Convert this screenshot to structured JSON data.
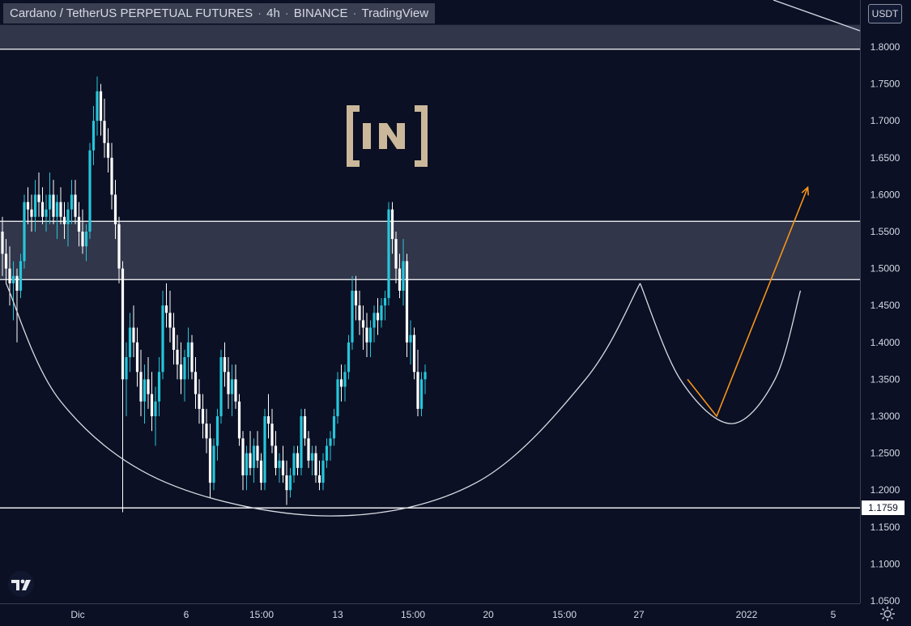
{
  "header": {
    "pair": "Cardano / TetherUS PERPETUAL FUTURES",
    "interval": "4h",
    "exchange": "BINANCE",
    "platform": "TradingView",
    "unit": "USDT"
  },
  "price_marker": {
    "value": "1.1759"
  },
  "chart_data": {
    "type": "candlestick",
    "y_axis": {
      "range": [
        1.05,
        1.83
      ],
      "ticks": [
        "1.8000",
        "1.7500",
        "1.7000",
        "1.6500",
        "1.6000",
        "1.5500",
        "1.5000",
        "1.4500",
        "1.4000",
        "1.3500",
        "1.3000",
        "1.2500",
        "1.2000",
        "1.1500",
        "1.1000",
        "1.0500"
      ]
    },
    "x_axis": {
      "ticks": [
        {
          "label": "Dic",
          "i": 20
        },
        {
          "label": "6",
          "i": 50
        },
        {
          "label": "15:00",
          "i": 70
        },
        {
          "label": "13",
          "i": 90
        },
        {
          "label": "15:00",
          "i": 110
        },
        {
          "label": "20",
          "i": 130
        },
        {
          "label": "15:00",
          "i": 150
        },
        {
          "label": "27",
          "i": 170
        },
        {
          "label": "2022",
          "i": 199
        },
        {
          "label": "5",
          "i": 222
        }
      ]
    },
    "levels": [
      1.797,
      1.564,
      1.485,
      1.1759
    ],
    "zones": [
      {
        "from": 1.797,
        "to": 1.83
      },
      {
        "from": 1.485,
        "to": 1.564
      }
    ],
    "colors": {
      "up": "#26c6da",
      "down": "#ffffff",
      "zone": "#52566a",
      "arrow": "#f7931a",
      "curve": "#d9dce3"
    },
    "candles_ohlc": [
      [
        1.55,
        1.57,
        1.49,
        1.52
      ],
      [
        1.52,
        1.54,
        1.48,
        1.5
      ],
      [
        1.5,
        1.53,
        1.45,
        1.48
      ],
      [
        1.48,
        1.51,
        1.43,
        1.49
      ],
      [
        1.49,
        1.5,
        1.4,
        1.47
      ],
      [
        1.47,
        1.52,
        1.46,
        1.51
      ],
      [
        1.51,
        1.6,
        1.5,
        1.59
      ],
      [
        1.59,
        1.61,
        1.56,
        1.58
      ],
      [
        1.58,
        1.6,
        1.55,
        1.57
      ],
      [
        1.57,
        1.62,
        1.55,
        1.6
      ],
      [
        1.6,
        1.63,
        1.57,
        1.59
      ],
      [
        1.59,
        1.61,
        1.56,
        1.57
      ],
      [
        1.57,
        1.6,
        1.55,
        1.58
      ],
      [
        1.58,
        1.63,
        1.56,
        1.6
      ],
      [
        1.6,
        1.62,
        1.56,
        1.57
      ],
      [
        1.57,
        1.6,
        1.54,
        1.59
      ],
      [
        1.59,
        1.61,
        1.56,
        1.57
      ],
      [
        1.57,
        1.59,
        1.54,
        1.56
      ],
      [
        1.56,
        1.59,
        1.53,
        1.58
      ],
      [
        1.58,
        1.62,
        1.56,
        1.6
      ],
      [
        1.6,
        1.62,
        1.56,
        1.57
      ],
      [
        1.57,
        1.59,
        1.53,
        1.55
      ],
      [
        1.55,
        1.58,
        1.52,
        1.53
      ],
      [
        1.53,
        1.56,
        1.51,
        1.55
      ],
      [
        1.55,
        1.67,
        1.54,
        1.66
      ],
      [
        1.66,
        1.72,
        1.64,
        1.7
      ],
      [
        1.7,
        1.76,
        1.68,
        1.74
      ],
      [
        1.74,
        1.75,
        1.68,
        1.7
      ],
      [
        1.7,
        1.73,
        1.65,
        1.67
      ],
      [
        1.67,
        1.69,
        1.63,
        1.65
      ],
      [
        1.65,
        1.67,
        1.58,
        1.6
      ],
      [
        1.6,
        1.62,
        1.54,
        1.56
      ],
      [
        1.56,
        1.57,
        1.48,
        1.5
      ],
      [
        1.5,
        1.51,
        1.17,
        1.35
      ],
      [
        1.35,
        1.4,
        1.3,
        1.38
      ],
      [
        1.38,
        1.44,
        1.36,
        1.42
      ],
      [
        1.42,
        1.45,
        1.38,
        1.4
      ],
      [
        1.4,
        1.42,
        1.34,
        1.36
      ],
      [
        1.36,
        1.39,
        1.3,
        1.32
      ],
      [
        1.32,
        1.37,
        1.29,
        1.35
      ],
      [
        1.35,
        1.38,
        1.31,
        1.33
      ],
      [
        1.33,
        1.36,
        1.28,
        1.3
      ],
      [
        1.3,
        1.34,
        1.26,
        1.32
      ],
      [
        1.32,
        1.38,
        1.3,
        1.36
      ],
      [
        1.36,
        1.47,
        1.35,
        1.45
      ],
      [
        1.45,
        1.48,
        1.42,
        1.44
      ],
      [
        1.44,
        1.47,
        1.4,
        1.42
      ],
      [
        1.42,
        1.44,
        1.37,
        1.39
      ],
      [
        1.39,
        1.41,
        1.35,
        1.37
      ],
      [
        1.37,
        1.4,
        1.33,
        1.35
      ],
      [
        1.35,
        1.39,
        1.32,
        1.38
      ],
      [
        1.38,
        1.42,
        1.35,
        1.4
      ],
      [
        1.4,
        1.41,
        1.35,
        1.36
      ],
      [
        1.36,
        1.38,
        1.31,
        1.33
      ],
      [
        1.33,
        1.35,
        1.29,
        1.31
      ],
      [
        1.31,
        1.33,
        1.27,
        1.29
      ],
      [
        1.29,
        1.31,
        1.25,
        1.27
      ],
      [
        1.27,
        1.29,
        1.19,
        1.21
      ],
      [
        1.21,
        1.27,
        1.2,
        1.26
      ],
      [
        1.26,
        1.31,
        1.24,
        1.3
      ],
      [
        1.3,
        1.39,
        1.29,
        1.38
      ],
      [
        1.38,
        1.4,
        1.34,
        1.36
      ],
      [
        1.36,
        1.38,
        1.31,
        1.33
      ],
      [
        1.33,
        1.37,
        1.3,
        1.35
      ],
      [
        1.35,
        1.37,
        1.31,
        1.32
      ],
      [
        1.32,
        1.33,
        1.26,
        1.27
      ],
      [
        1.27,
        1.28,
        1.2,
        1.22
      ],
      [
        1.22,
        1.26,
        1.2,
        1.25
      ],
      [
        1.25,
        1.28,
        1.22,
        1.23
      ],
      [
        1.23,
        1.27,
        1.21,
        1.26
      ],
      [
        1.26,
        1.28,
        1.23,
        1.24
      ],
      [
        1.24,
        1.25,
        1.2,
        1.21
      ],
      [
        1.21,
        1.31,
        1.2,
        1.3
      ],
      [
        1.3,
        1.33,
        1.27,
        1.29
      ],
      [
        1.29,
        1.31,
        1.25,
        1.26
      ],
      [
        1.26,
        1.28,
        1.22,
        1.23
      ],
      [
        1.23,
        1.25,
        1.21,
        1.24
      ],
      [
        1.24,
        1.26,
        1.21,
        1.22
      ],
      [
        1.22,
        1.24,
        1.18,
        1.2
      ],
      [
        1.2,
        1.23,
        1.19,
        1.22
      ],
      [
        1.22,
        1.26,
        1.21,
        1.25
      ],
      [
        1.25,
        1.26,
        1.22,
        1.23
      ],
      [
        1.23,
        1.31,
        1.22,
        1.3
      ],
      [
        1.3,
        1.31,
        1.26,
        1.27
      ],
      [
        1.27,
        1.28,
        1.23,
        1.24
      ],
      [
        1.24,
        1.26,
        1.22,
        1.25
      ],
      [
        1.25,
        1.26,
        1.21,
        1.22
      ],
      [
        1.22,
        1.24,
        1.2,
        1.21
      ],
      [
        1.21,
        1.25,
        1.2,
        1.24
      ],
      [
        1.24,
        1.27,
        1.23,
        1.26
      ],
      [
        1.26,
        1.28,
        1.24,
        1.27
      ],
      [
        1.27,
        1.31,
        1.26,
        1.3
      ],
      [
        1.3,
        1.36,
        1.29,
        1.35
      ],
      [
        1.35,
        1.37,
        1.32,
        1.34
      ],
      [
        1.34,
        1.37,
        1.32,
        1.36
      ],
      [
        1.36,
        1.41,
        1.35,
        1.4
      ],
      [
        1.4,
        1.49,
        1.39,
        1.47
      ],
      [
        1.47,
        1.49,
        1.43,
        1.45
      ],
      [
        1.45,
        1.47,
        1.41,
        1.43
      ],
      [
        1.43,
        1.45,
        1.39,
        1.42
      ],
      [
        1.42,
        1.44,
        1.38,
        1.4
      ],
      [
        1.4,
        1.43,
        1.38,
        1.42
      ],
      [
        1.42,
        1.45,
        1.4,
        1.44
      ],
      [
        1.44,
        1.46,
        1.41,
        1.43
      ],
      [
        1.43,
        1.46,
        1.42,
        1.45
      ],
      [
        1.45,
        1.47,
        1.43,
        1.46
      ],
      [
        1.46,
        1.59,
        1.45,
        1.58
      ],
      [
        1.58,
        1.59,
        1.52,
        1.54
      ],
      [
        1.54,
        1.55,
        1.48,
        1.5
      ],
      [
        1.5,
        1.52,
        1.46,
        1.47
      ],
      [
        1.47,
        1.54,
        1.45,
        1.51
      ],
      [
        1.51,
        1.52,
        1.38,
        1.4
      ],
      [
        1.4,
        1.43,
        1.37,
        1.41
      ],
      [
        1.41,
        1.42,
        1.35,
        1.36
      ],
      [
        1.36,
        1.39,
        1.3,
        1.31
      ],
      [
        1.31,
        1.36,
        1.3,
        1.35
      ],
      [
        1.35,
        1.37,
        1.33,
        1.36
      ]
    ],
    "annotations": {
      "big_cup": [
        [
          1,
          1.48
        ],
        [
          16,
          1.32
        ],
        [
          45,
          1.21
        ],
        [
          90,
          1.165
        ],
        [
          130,
          1.21
        ],
        [
          160,
          1.35
        ],
        [
          175,
          1.48
        ]
      ],
      "small_cup": [
        [
          175,
          1.48
        ],
        [
          186,
          1.35
        ],
        [
          200,
          1.29
        ],
        [
          212,
          1.35
        ],
        [
          219,
          1.47
        ]
      ],
      "projection_arrow": [
        [
          188,
          1.35
        ],
        [
          196,
          1.3
        ],
        [
          221,
          1.61
        ]
      ]
    }
  }
}
